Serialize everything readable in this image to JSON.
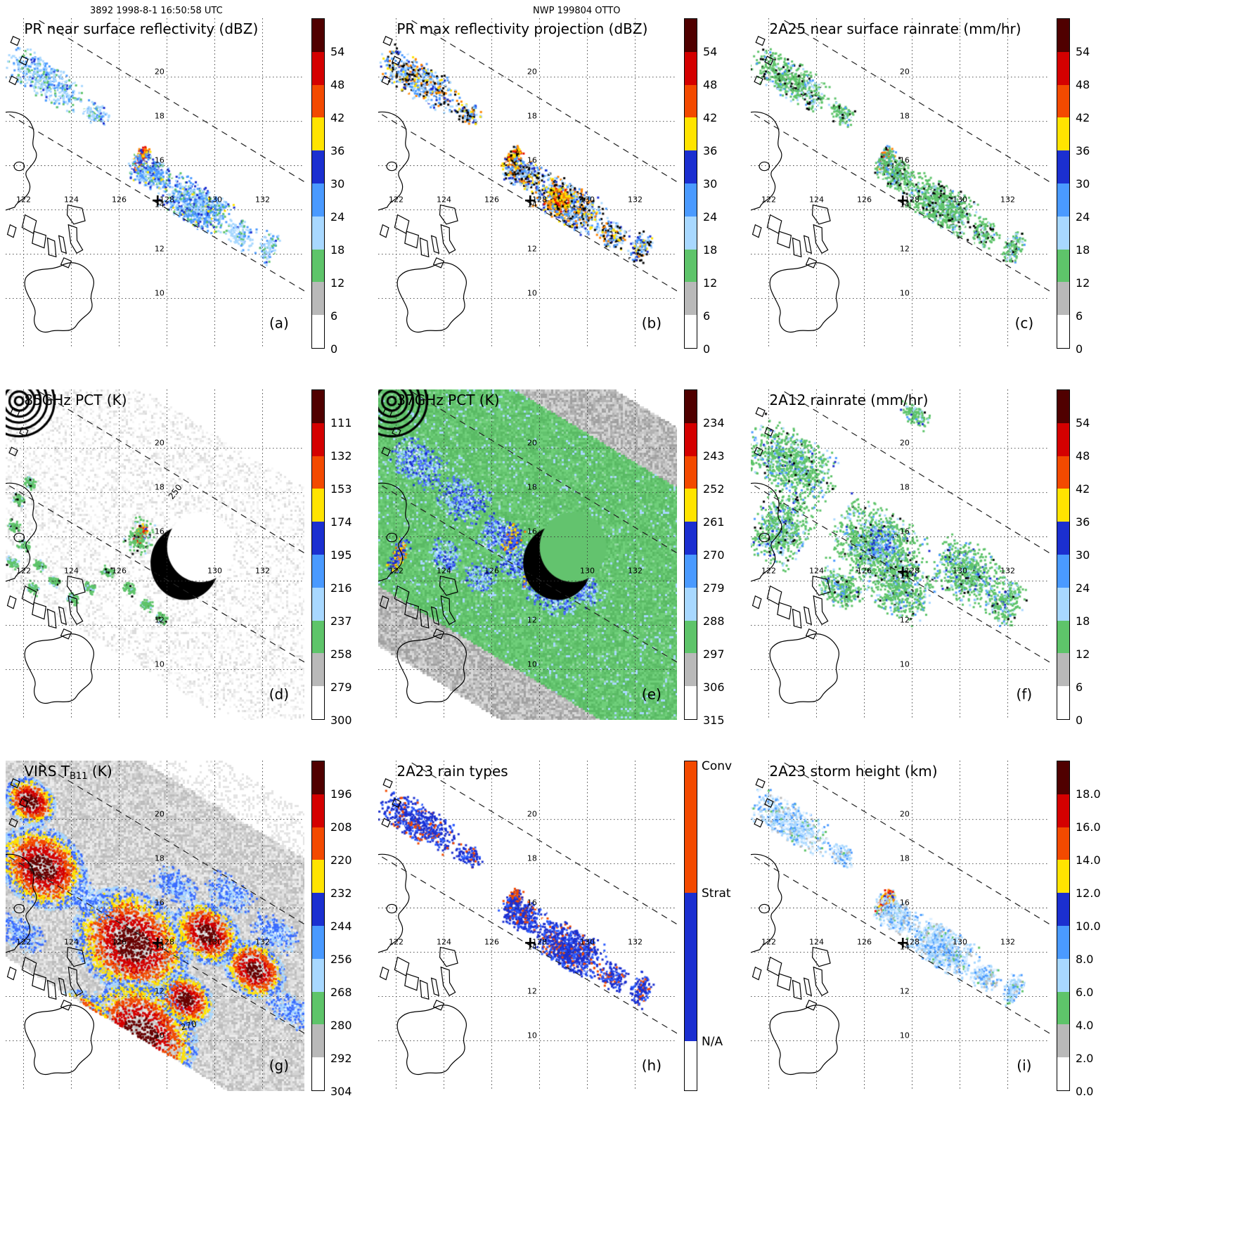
{
  "header": {
    "left": "3892 1998-8-1 16:50:58 UTC",
    "center": "NWP 199804 OTTO"
  },
  "map": {
    "lon_labels": [
      "122",
      "124",
      "126",
      "128",
      "130",
      "132"
    ],
    "lat_labels": [
      "20",
      "18",
      "16",
      "14",
      "12",
      "10"
    ]
  },
  "marker": {
    "symbol": "+"
  },
  "colorbars": {
    "dbz": {
      "ticks": [
        "54",
        "48",
        "42",
        "36",
        "30",
        "24",
        "18",
        "12",
        "6",
        "0"
      ]
    },
    "pct85": {
      "ticks": [
        "111",
        "132",
        "153",
        "174",
        "195",
        "216",
        "237",
        "258",
        "279",
        "300"
      ]
    },
    "pct37": {
      "ticks": [
        "234",
        "243",
        "252",
        "261",
        "270",
        "279",
        "288",
        "297",
        "306",
        "315"
      ]
    },
    "virs": {
      "ticks": [
        "196",
        "208",
        "220",
        "232",
        "244",
        "256",
        "268",
        "280",
        "292",
        "304"
      ]
    },
    "height": {
      "ticks": [
        "18.0",
        "16.0",
        "14.0",
        "12.0",
        "10.0",
        "8.0",
        "6.0",
        "4.0",
        "2.0",
        "0.0"
      ]
    },
    "raintype": {
      "labels": [
        "Conv",
        "Strat",
        "N/A"
      ]
    }
  },
  "panels": [
    {
      "id": "a",
      "title": "PR near surface reflectivity (dBZ)",
      "letter": "(a)",
      "colorbar": "dbz"
    },
    {
      "id": "b",
      "title": "PR max reflectivity projection (dBZ)",
      "letter": "(b)",
      "colorbar": "dbz"
    },
    {
      "id": "c",
      "title": "2A25 near surface rainrate (mm/hr)",
      "letter": "(c)",
      "colorbar": "dbz"
    },
    {
      "id": "d",
      "title": "85GHz PCT (K)",
      "letter": "(d)",
      "colorbar": "pct85",
      "note": "250"
    },
    {
      "id": "e",
      "title": "37GHz PCT (K)",
      "letter": "(e)",
      "colorbar": "pct37"
    },
    {
      "id": "f",
      "title": "2A12 rainrate (mm/hr)",
      "letter": "(f)",
      "colorbar": "dbz"
    },
    {
      "id": "g",
      "title_pre": "VIRS T",
      "title_sub": "B11",
      "title_post": " (K)",
      "letter": "(g)",
      "colorbar": "virs",
      "note": "270"
    },
    {
      "id": "h",
      "title": "2A23 rain types",
      "letter": "(h)",
      "colorbar": "raintype"
    },
    {
      "id": "i",
      "title": "2A23 storm height (km)",
      "letter": "(i)",
      "colorbar": "height"
    }
  ],
  "chart_data": {
    "type": "heatmap",
    "description": "3x3 grid of TRMM satellite observation maps of storm NWP 199804 OTTO, orbit 3892, 1998-8-1 16:50:58 UTC; each panel maps a data field over the Philippines region with a diagonal satellite swath (dashed edges) and a + marking the storm center",
    "lon_ticks": [
      122,
      124,
      126,
      128,
      130,
      132
    ],
    "lat_ticks": [
      20,
      18,
      16,
      14,
      12,
      10
    ],
    "storm_center_marker": {
      "lon": 127.5,
      "lat": 14.3
    },
    "panels": [
      {
        "panel": "(a)",
        "title": "PR near surface reflectivity",
        "units": "dBZ",
        "scale": [
          0,
          6,
          12,
          18,
          24,
          30,
          36,
          42,
          48,
          54
        ]
      },
      {
        "panel": "(b)",
        "title": "PR max reflectivity projection",
        "units": "dBZ",
        "scale": [
          0,
          6,
          12,
          18,
          24,
          30,
          36,
          42,
          48,
          54
        ]
      },
      {
        "panel": "(c)",
        "title": "2A25 near surface rainrate",
        "units": "mm/hr",
        "scale": [
          0,
          6,
          12,
          18,
          24,
          30,
          36,
          42,
          48,
          54
        ]
      },
      {
        "panel": "(d)",
        "title": "85GHz PCT",
        "units": "K",
        "scale": [
          111,
          132,
          153,
          174,
          195,
          216,
          237,
          258,
          279,
          300
        ],
        "contour_label": 250
      },
      {
        "panel": "(e)",
        "title": "37GHz PCT",
        "units": "K",
        "scale": [
          234,
          243,
          252,
          261,
          270,
          279,
          288,
          297,
          306,
          315
        ]
      },
      {
        "panel": "(f)",
        "title": "2A12 rainrate",
        "units": "mm/hr",
        "scale": [
          0,
          6,
          12,
          18,
          24,
          30,
          36,
          42,
          48,
          54
        ]
      },
      {
        "panel": "(g)",
        "title": "VIRS TB11",
        "units": "K",
        "scale": [
          196,
          208,
          220,
          232,
          244,
          256,
          268,
          280,
          292,
          304
        ],
        "contour_label": 270
      },
      {
        "panel": "(h)",
        "title": "2A23 rain types",
        "categories": [
          "Conv",
          "Strat",
          "N/A"
        ]
      },
      {
        "panel": "(i)",
        "title": "2A23 storm height",
        "units": "km",
        "scale": [
          0,
          2,
          4,
          6,
          8,
          10,
          12,
          14,
          16,
          18
        ]
      }
    ]
  }
}
